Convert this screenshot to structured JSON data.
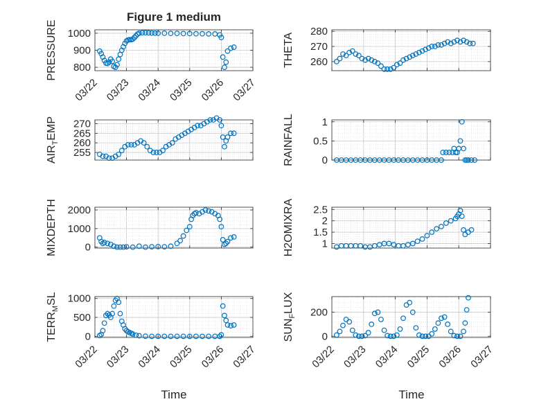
{
  "figure": {
    "title": "Figure 1 medium",
    "xlabel": "Time",
    "marker_color": "#0072BD"
  },
  "chart_data": [
    {
      "type": "scatter",
      "ylabel": "PRESSURE",
      "ylim": [
        780,
        1020
      ],
      "yticks": [
        800,
        900,
        1000
      ],
      "xlim": [
        0,
        5
      ],
      "x_tick_labels": [
        "03/22",
        "03/23",
        "03/24",
        "03/25",
        "03/26",
        "03/27"
      ],
      "grid": true,
      "x": [
        0.15,
        0.2,
        0.25,
        0.3,
        0.35,
        0.4,
        0.45,
        0.5,
        0.55,
        0.6,
        0.65,
        0.7,
        0.75,
        0.8,
        0.85,
        0.9,
        0.95,
        1.0,
        1.05,
        1.1,
        1.15,
        1.2,
        1.25,
        1.3,
        1.35,
        1.4,
        1.5,
        1.6,
        1.7,
        1.8,
        1.9,
        2.0,
        2.2,
        2.4,
        2.6,
        2.8,
        3.0,
        3.2,
        3.4,
        3.6,
        3.8,
        3.95,
        4.0,
        4.05,
        4.1,
        4.15,
        4.2,
        4.3,
        4.4
      ],
      "values": [
        895,
        880,
        860,
        840,
        825,
        822,
        830,
        848,
        835,
        805,
        800,
        815,
        848,
        875,
        900,
        920,
        940,
        955,
        960,
        962,
        962,
        965,
        975,
        985,
        995,
        1000,
        1003,
        1003,
        1002,
        1001,
        1000,
        1000,
        1000,
        999,
        999,
        998,
        998,
        997,
        997,
        996,
        996,
        990,
        975,
        860,
        800,
        830,
        895,
        912,
        918
      ]
    },
    {
      "type": "scatter",
      "ylabel": "THETA",
      "ylim": [
        254,
        281
      ],
      "yticks": [
        260,
        270,
        280
      ],
      "xlim": [
        0,
        5
      ],
      "x_tick_labels": [],
      "grid": true,
      "x": [
        0.15,
        0.25,
        0.35,
        0.45,
        0.55,
        0.65,
        0.75,
        0.85,
        0.95,
        1.05,
        1.15,
        1.25,
        1.35,
        1.45,
        1.55,
        1.65,
        1.75,
        1.85,
        1.95,
        2.05,
        2.15,
        2.25,
        2.35,
        2.45,
        2.55,
        2.65,
        2.75,
        2.85,
        2.95,
        3.05,
        3.15,
        3.25,
        3.35,
        3.45,
        3.55,
        3.65,
        3.75,
        3.85,
        3.95,
        4.05,
        4.15,
        4.25,
        4.35,
        4.45
      ],
      "values": [
        260,
        262,
        265,
        264,
        266,
        267,
        265,
        264,
        262,
        261,
        262,
        261,
        260,
        259,
        257,
        255,
        255,
        255,
        256,
        258,
        259,
        261,
        262,
        263,
        264,
        265,
        266,
        267,
        268,
        269,
        270,
        270,
        271,
        271,
        272,
        273,
        272,
        273,
        274,
        273,
        274,
        273,
        272,
        272
      ]
    },
    {
      "type": "scatter",
      "ylabel": "AIR_TEMP",
      "ylabel_main": "AIR",
      "ylabel_sub": "T",
      "ylabel_rest": "EMP",
      "ylim": [
        251,
        272
      ],
      "yticks": [
        255,
        260,
        265,
        270
      ],
      "xlim": [
        0,
        5
      ],
      "x_tick_labels": [],
      "grid": true,
      "x": [
        0.15,
        0.25,
        0.35,
        0.45,
        0.55,
        0.65,
        0.75,
        0.85,
        0.95,
        1.05,
        1.15,
        1.25,
        1.35,
        1.45,
        1.55,
        1.65,
        1.75,
        1.85,
        1.95,
        2.05,
        2.15,
        2.25,
        2.35,
        2.45,
        2.55,
        2.65,
        2.75,
        2.85,
        2.95,
        3.05,
        3.15,
        3.25,
        3.35,
        3.45,
        3.55,
        3.65,
        3.75,
        3.85,
        3.95,
        4.0,
        4.05,
        4.1,
        4.15,
        4.2,
        4.3,
        4.4
      ],
      "values": [
        254,
        253,
        253,
        252,
        252,
        253,
        254,
        256,
        258,
        259,
        259,
        259,
        260,
        261,
        260,
        258,
        256,
        255,
        255,
        255,
        256,
        258,
        259,
        260,
        262,
        263,
        264,
        265,
        266,
        267,
        268,
        269,
        269,
        270,
        271,
        272,
        272,
        273,
        272,
        269,
        263,
        258,
        261,
        263,
        265,
        265
      ]
    },
    {
      "type": "scatter",
      "ylabel": "RAINFALL",
      "ylim": [
        0,
        1.05
      ],
      "yticks": [
        0,
        0.5,
        1
      ],
      "ytick_labels": [
        "0",
        "0.5",
        "1"
      ],
      "xlim": [
        0,
        5
      ],
      "x_tick_labels": [],
      "grid": true,
      "x": [
        0.15,
        0.3,
        0.45,
        0.6,
        0.75,
        0.9,
        1.05,
        1.2,
        1.35,
        1.5,
        1.65,
        1.8,
        1.95,
        2.1,
        2.25,
        2.4,
        2.55,
        2.7,
        2.85,
        3.0,
        3.15,
        3.3,
        3.45,
        3.5,
        3.6,
        3.7,
        3.8,
        3.85,
        3.9,
        3.95,
        4.0,
        4.05,
        4.1,
        4.15,
        4.2,
        4.25,
        4.3,
        4.4,
        4.5
      ],
      "values": [
        0,
        0,
        0,
        0,
        0,
        0,
        0,
        0,
        0,
        0,
        0,
        0,
        0,
        0,
        0,
        0,
        0,
        0,
        0,
        0,
        0,
        0,
        0,
        0.2,
        0.2,
        0.2,
        0.2,
        0.3,
        0.2,
        0.2,
        0.3,
        0.5,
        1.0,
        0.3,
        0,
        0,
        0,
        0,
        0
      ]
    },
    {
      "type": "scatter",
      "ylabel": "MIXDEPTH",
      "ylim": [
        -50,
        2150
      ],
      "yticks": [
        0,
        1000,
        2000
      ],
      "xlim": [
        0,
        5
      ],
      "x_tick_labels": [],
      "grid": true,
      "x": [
        0.15,
        0.2,
        0.25,
        0.3,
        0.4,
        0.5,
        0.6,
        0.7,
        0.8,
        0.9,
        1.0,
        1.2,
        1.4,
        1.6,
        1.8,
        2.0,
        2.2,
        2.4,
        2.6,
        2.7,
        2.8,
        2.9,
        3.0,
        3.05,
        3.1,
        3.15,
        3.2,
        3.3,
        3.4,
        3.5,
        3.6,
        3.7,
        3.8,
        3.9,
        3.95,
        4.0,
        4.05,
        4.1,
        4.15,
        4.2,
        4.3,
        4.4
      ],
      "values": [
        500,
        300,
        200,
        250,
        200,
        150,
        50,
        0,
        0,
        0,
        20,
        0,
        50,
        0,
        20,
        30,
        20,
        50,
        200,
        350,
        600,
        900,
        1100,
        1500,
        1700,
        1800,
        1850,
        1800,
        1900,
        2000,
        1950,
        1900,
        1800,
        1700,
        1500,
        1100,
        400,
        150,
        200,
        300,
        500,
        550
      ]
    },
    {
      "type": "scatter",
      "ylabel": "H2OMIXRA",
      "ylim": [
        0.8,
        2.6
      ],
      "yticks": [
        1,
        1.5,
        2,
        2.5
      ],
      "ytick_labels": [
        "1",
        "1.5",
        "2",
        "2.5"
      ],
      "xlim": [
        0,
        5
      ],
      "x_tick_labels": [],
      "grid": true,
      "x": [
        0.15,
        0.3,
        0.45,
        0.6,
        0.75,
        0.9,
        1.05,
        1.2,
        1.35,
        1.5,
        1.65,
        1.8,
        1.95,
        2.1,
        2.25,
        2.4,
        2.55,
        2.7,
        2.85,
        3.0,
        3.15,
        3.3,
        3.45,
        3.6,
        3.75,
        3.9,
        3.95,
        4.0,
        4.05,
        4.1,
        4.15,
        4.2,
        4.3,
        4.4
      ],
      "values": [
        0.85,
        0.9,
        0.9,
        0.9,
        0.9,
        0.9,
        0.85,
        0.85,
        0.9,
        0.95,
        1.0,
        1.0,
        0.95,
        0.9,
        0.9,
        0.95,
        1.0,
        1.1,
        1.2,
        1.35,
        1.5,
        1.65,
        1.75,
        1.9,
        2.0,
        2.1,
        2.2,
        2.3,
        2.45,
        2.2,
        1.6,
        1.4,
        1.5,
        1.6
      ]
    },
    {
      "type": "scatter",
      "ylabel": "TERR_MSL",
      "ylabel_main": "TERR",
      "ylabel_sub": "M",
      "ylabel_rest": "SL",
      "ylim": [
        -30,
        1050
      ],
      "yticks": [
        0,
        500,
        1000
      ],
      "xlim": [
        0,
        5
      ],
      "x_tick_labels": [
        "03/22",
        "03/23",
        "03/24",
        "03/25",
        "03/26",
        "03/27"
      ],
      "grid": true,
      "x": [
        0.15,
        0.2,
        0.25,
        0.3,
        0.35,
        0.4,
        0.45,
        0.5,
        0.55,
        0.6,
        0.65,
        0.7,
        0.75,
        0.8,
        0.85,
        0.9,
        0.95,
        1.0,
        1.05,
        1.1,
        1.15,
        1.2,
        1.3,
        1.4,
        1.6,
        1.8,
        2.0,
        2.2,
        2.4,
        2.6,
        2.8,
        3.0,
        3.2,
        3.4,
        3.6,
        3.8,
        3.95,
        4.0,
        4.05,
        4.1,
        4.15,
        4.2,
        4.3,
        4.4
      ],
      "values": [
        20,
        50,
        150,
        350,
        550,
        600,
        560,
        500,
        600,
        800,
        950,
        1000,
        900,
        600,
        400,
        300,
        200,
        150,
        120,
        100,
        80,
        60,
        30,
        15,
        5,
        0,
        0,
        0,
        0,
        0,
        0,
        0,
        0,
        0,
        0,
        0,
        0,
        40,
        800,
        550,
        420,
        300,
        280,
        300
      ]
    },
    {
      "type": "scatter",
      "ylabel": "SUN_FLUX",
      "ylabel_main": "SUN",
      "ylabel_sub": "F",
      "ylabel_rest": "LUX",
      "ylim": [
        -10,
        330
      ],
      "yticks": [
        0,
        200
      ],
      "xlim": [
        0,
        5
      ],
      "x_tick_labels": [
        "03/22",
        "03/23",
        "03/24",
        "03/25",
        "03/26",
        "03/27"
      ],
      "grid": true,
      "x": [
        0.15,
        0.25,
        0.35,
        0.45,
        0.55,
        0.65,
        0.75,
        0.85,
        0.95,
        1.05,
        1.15,
        1.25,
        1.35,
        1.45,
        1.55,
        1.65,
        1.75,
        1.85,
        1.95,
        2.05,
        2.15,
        2.25,
        2.35,
        2.45,
        2.55,
        2.65,
        2.75,
        2.85,
        2.95,
        3.05,
        3.15,
        3.25,
        3.35,
        3.45,
        3.55,
        3.65,
        3.75,
        3.85,
        3.95,
        4.05,
        4.15,
        4.2,
        4.25,
        4.3
      ],
      "values": [
        10,
        40,
        90,
        140,
        120,
        50,
        10,
        0,
        0,
        5,
        30,
        100,
        190,
        200,
        140,
        50,
        5,
        0,
        0,
        10,
        60,
        150,
        260,
        280,
        200,
        70,
        10,
        0,
        0,
        0,
        20,
        60,
        110,
        150,
        160,
        100,
        40,
        5,
        0,
        0,
        40,
        110,
        220,
        320
      ]
    }
  ]
}
